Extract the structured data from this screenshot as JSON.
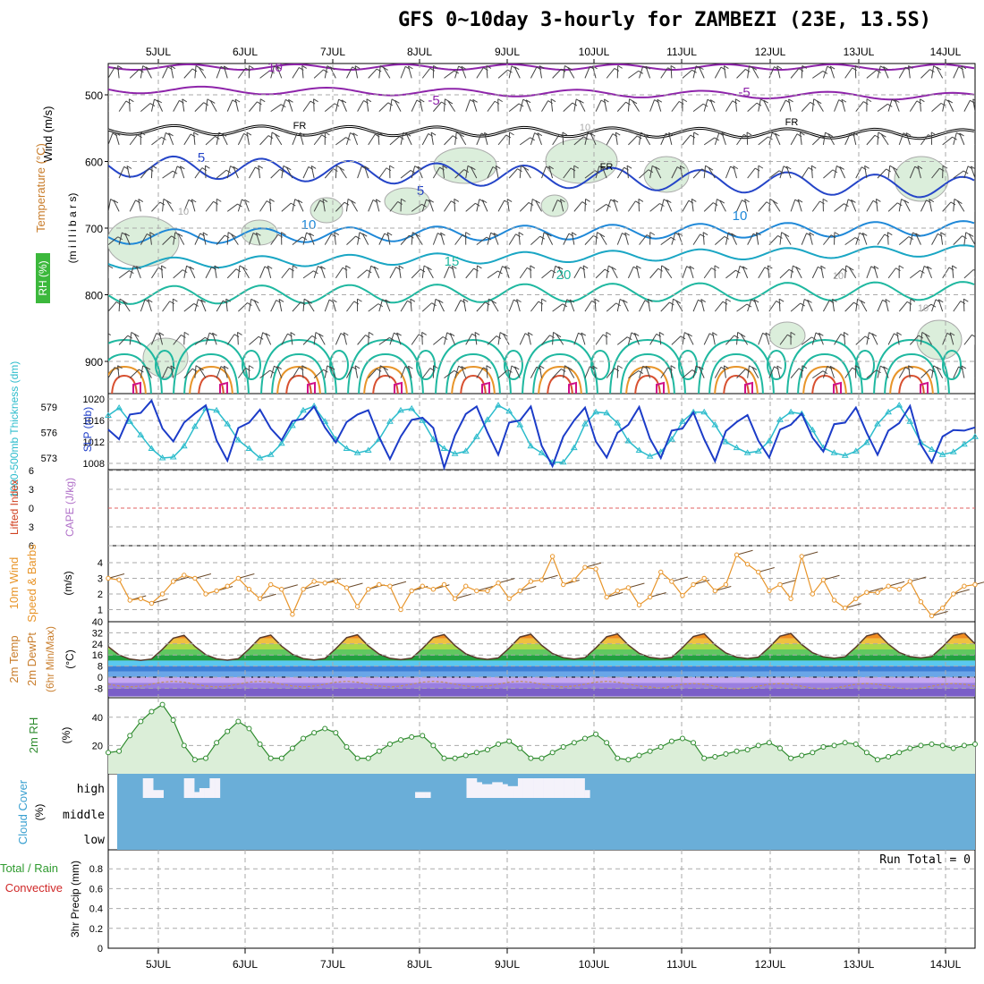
{
  "title": "GFS 0~10day 3-hourly for ZAMBEZI (23E, 13.5S)",
  "chart_data": [
    {
      "type": "line",
      "panel": "upper-air",
      "title": "",
      "x": [
        "5JUL",
        "6JUL",
        "7JUL",
        "8JUL",
        "9JUL",
        "10JUL",
        "11JUL",
        "12JUL",
        "13JUL",
        "14JUL"
      ],
      "yticks": [
        500,
        600,
        700,
        800,
        900
      ],
      "ylabels": [
        "Wind (m/s)",
        "Temperature (°C)",
        "RH (%)",
        "(m i l l i b a r s)"
      ],
      "contour_labels": [
        {
          "value": "-10",
          "color": "#8e24aa"
        },
        {
          "value": "-5",
          "color": "#8e24aa"
        },
        {
          "value": "-5",
          "color": "#8e24aa"
        },
        {
          "value": "FR",
          "color": "#000000"
        },
        {
          "value": "FR",
          "color": "#000000"
        },
        {
          "value": "FR",
          "color": "#000000"
        },
        {
          "value": "5",
          "color": "#2545c8"
        },
        {
          "value": "5",
          "color": "#2545c8"
        },
        {
          "value": "10",
          "color": "#1e88d8"
        },
        {
          "value": "10",
          "color": "#1e88d8"
        },
        {
          "value": "15",
          "color": "#1fb8a0"
        },
        {
          "value": "20",
          "color": "#1fb8a0"
        },
        {
          "value": "10",
          "color": "#aaaaaa"
        },
        {
          "value": "10",
          "color": "#aaaaaa"
        },
        {
          "value": "10",
          "color": "#aaaaaa"
        },
        {
          "value": "10",
          "color": "#aaaaaa"
        }
      ],
      "colors": {
        "purple": "#8e24aa",
        "blue": "#2545c8",
        "lightblue": "#1e88d8",
        "teal": "#1fb8a0",
        "orange": "#e8952a",
        "red": "#d85030",
        "magenta": "#d0108a",
        "rhfill": "#dbeedb"
      }
    },
    {
      "type": "line",
      "panel": "slp-thickness",
      "ylabels": [
        "1000-500mb Thickness (dm)",
        "SLP (mb)"
      ],
      "yticks_left": [
        573,
        576,
        579
      ],
      "yticks_right": [
        1008,
        1012,
        1016,
        1020
      ],
      "series": [
        {
          "name": "SLP (mb)",
          "color": "#1c3cc8",
          "values": [
            1014.3,
            1012.5,
            1017.1,
            1017.4,
            1019.7,
            1014.5,
            1012.1,
            1015.6,
            1017.3,
            1018.8,
            1012.3,
            1008.5,
            1014.6,
            1015.6,
            1018.0,
            1014.5,
            1012.3,
            1015.9,
            1016.3,
            1018.6,
            1014.7,
            1011.9,
            1015.7,
            1017.1,
            1017.9,
            1012.9,
            1008.8,
            1013.0,
            1016.1,
            1016.5,
            1014.6,
            1007.2,
            1013.2,
            1017.2,
            1018.6,
            1013.8,
            1009.6,
            1015.6,
            1016.0,
            1018.6,
            1011.3,
            1007.5,
            1013.0,
            1016.0,
            1018.4,
            1012.1,
            1009.1,
            1013.7,
            1015.2,
            1018.5,
            1012.6,
            1009.0,
            1014.1,
            1014.5,
            1017.5,
            1012.5,
            1008.4,
            1014.0,
            1015.7,
            1017.0,
            1012.2,
            1009.1,
            1014.3,
            1015.2,
            1017.3,
            1012.8,
            1010.2,
            1015.3,
            1015.6,
            1018.4,
            1013.7,
            1009.6,
            1014.1,
            1015.5,
            1018.7,
            1011.5,
            1008.2,
            1013.0,
            1014.2,
            1014.1,
            1014.7
          ]
        },
        {
          "name": "1000-500mb Thickness (dm)",
          "color": "#2cbccc",
          "values": [
            578.0,
            578.9,
            577.3,
            575.7,
            574.1,
            573.0,
            573.1,
            574.4,
            576.7,
            578.8,
            578.6,
            577.0,
            575.1,
            574.1,
            573.0,
            573.4,
            574.7,
            576.8,
            578.6,
            579.1,
            577.3,
            575.2,
            574.1,
            573.6,
            573.9,
            575.2,
            577.3,
            578.6,
            578.8,
            577.4,
            575.2,
            574.1,
            573.5,
            573.8,
            575.5,
            577.5,
            579.2,
            578.5,
            576.9,
            574.4,
            573.6,
            572.5,
            572.5,
            574.2,
            577.0,
            578.4,
            578.3,
            577.1,
            575.0,
            573.9,
            573.2,
            573.7,
            575.2,
            577.3,
            578.4,
            578.4,
            576.9,
            574.9,
            574.2,
            573.6,
            573.8,
            575.0,
            577.5,
            578.4,
            578.2,
            576.3,
            574.2,
            573.6,
            573.3,
            573.8,
            574.8,
            577.0,
            578.4,
            579.2,
            577.3,
            574.8,
            574.0,
            573.4,
            573.7,
            574.6,
            575.5
          ]
        }
      ]
    },
    {
      "type": "line",
      "panel": "cape-li",
      "ylabels": [
        "Lifted Index",
        "CAPE (J/kg)"
      ],
      "yticks": [
        "-6",
        "-3",
        "0",
        "3",
        "6"
      ],
      "series": [
        {
          "name": "Lifted Index zero line",
          "values": [
            0
          ],
          "color": "#e06060"
        }
      ]
    },
    {
      "type": "line",
      "panel": "10m-wind",
      "ylabels": [
        "10m Wind",
        "Speed & Barbs",
        "(m/s)"
      ],
      "yticks": [
        1,
        2,
        3,
        4
      ],
      "series": [
        {
          "name": "10m Wind Speed",
          "color": "#e8952a",
          "values": [
            3.0,
            2.9,
            1.6,
            1.7,
            1.4,
            2.0,
            2.8,
            3.2,
            3.0,
            2.0,
            2.2,
            2.5,
            3.0,
            2.3,
            1.7,
            2.6,
            2.3,
            0.7,
            2.3,
            2.8,
            2.7,
            2.8,
            2.4,
            1.2,
            2.3,
            2.6,
            2.5,
            1.0,
            2.2,
            2.5,
            2.3,
            2.6,
            1.7,
            2.5,
            2.2,
            2.2,
            2.7,
            1.7,
            2.2,
            2.8,
            2.9,
            4.4,
            2.6,
            2.9,
            3.7,
            3.6,
            1.8,
            2.2,
            2.4,
            1.3,
            1.8,
            3.4,
            2.8,
            1.9,
            2.6,
            3.0,
            2.2,
            2.6,
            4.5,
            3.9,
            3.4,
            2.2,
            2.6,
            1.7,
            4.4,
            2.0,
            2.9,
            1.6,
            1.1,
            1.7,
            2.1,
            2.1,
            2.5,
            2.3,
            2.8,
            1.5,
            0.6,
            1.1,
            2.0,
            2.5,
            2.6
          ]
        }
      ]
    },
    {
      "type": "area",
      "panel": "2m-temp",
      "ylabels": [
        "2m Temp",
        "2m DewPt",
        "(6hr Min/Max)",
        "(°C)"
      ],
      "yticks": [
        -8,
        0,
        8,
        16,
        24,
        32,
        40
      ]
    },
    {
      "type": "area",
      "panel": "2m-rh",
      "ylabels": [
        "2m RH",
        "(%)"
      ],
      "yticks": [
        20,
        40
      ],
      "series": [
        {
          "name": "2m RH",
          "color": "#2e8b2e",
          "values": [
            15,
            16,
            27,
            37,
            44,
            49,
            38,
            20,
            10,
            11,
            22,
            30,
            37,
            32,
            21,
            11,
            11,
            18,
            25,
            29,
            32,
            29,
            19,
            11,
            11,
            16,
            21,
            24,
            26,
            27,
            20,
            11,
            11,
            13,
            15,
            17,
            21,
            23,
            18,
            11,
            11,
            15,
            19,
            22,
            25,
            28,
            22,
            11,
            10,
            13,
            16,
            19,
            23,
            25,
            22,
            11,
            12,
            14,
            16,
            17,
            20,
            22,
            18,
            11,
            13,
            15,
            19,
            20,
            22,
            21,
            15,
            10,
            12,
            15,
            18,
            20,
            21,
            20,
            18,
            20,
            21
          ]
        }
      ]
    },
    {
      "type": "bar",
      "panel": "cloud-cover",
      "ylabels": [
        "Cloud Cover",
        "(%)"
      ],
      "yticks": [
        "low",
        "middle",
        "high"
      ],
      "series": [
        {
          "name": "high",
          "values": [
            0,
            0,
            0,
            0,
            0,
            100,
            100,
            40,
            40,
            0,
            0,
            0,
            0,
            100,
            100,
            30,
            50,
            50,
            100,
            100,
            0,
            0,
            0,
            0,
            0,
            0,
            0,
            0,
            0,
            0,
            0,
            0,
            0,
            0,
            0,
            0,
            0,
            0,
            0,
            0,
            0,
            0,
            0,
            0,
            0,
            0,
            0,
            0,
            0,
            0,
            0,
            0,
            0,
            0,
            0,
            0,
            0,
            0,
            30,
            30,
            30,
            0,
            0,
            0,
            0,
            0,
            0,
            0,
            100,
            100,
            80,
            70,
            70,
            80,
            80,
            70,
            60,
            60,
            100,
            100,
            100,
            100,
            100,
            100,
            100,
            100,
            100,
            100,
            100,
            100,
            100,
            40,
            0,
            0,
            0,
            0,
            0,
            0,
            0,
            0,
            0,
            0,
            0,
            0,
            0,
            0,
            0,
            0,
            0,
            0,
            0,
            0,
            0,
            0,
            0,
            0,
            0,
            0,
            0,
            0,
            0,
            0,
            0,
            0,
            0,
            0,
            0,
            0,
            0,
            0,
            0,
            0,
            0,
            0,
            0,
            0,
            0,
            0,
            0,
            0,
            0,
            0,
            0,
            0,
            0,
            0,
            0,
            0,
            0,
            0,
            0,
            0,
            0,
            0,
            0,
            0,
            0,
            0,
            0,
            0,
            0,
            0,
            0,
            0,
            0,
            0,
            0
          ]
        }
      ]
    },
    {
      "type": "bar",
      "panel": "precip",
      "ylabels": [
        "Total / Rain",
        "Convective",
        "3hr Precip (mm)"
      ],
      "yticks": [
        0,
        0.2,
        0.4,
        0.6,
        0.8
      ],
      "annotation": "Run Total = 0"
    }
  ]
}
